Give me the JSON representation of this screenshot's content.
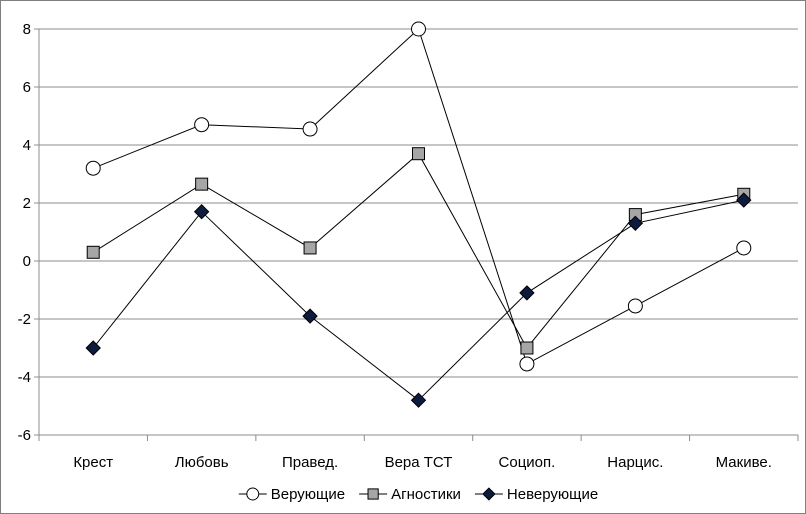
{
  "chart_data": {
    "type": "line",
    "categories": [
      "Крест",
      "Любовь",
      "Правед.",
      "Вера ТСТ",
      "Социоп.",
      "Нарцис.",
      "Макиве."
    ],
    "ylim": [
      -6,
      8
    ],
    "yticks": [
      "-6",
      "-4",
      "-2",
      "0",
      "2",
      "4",
      "6",
      "8"
    ],
    "grid": true,
    "legend_position": "bottom",
    "series": [
      {
        "name": "Верующие",
        "marker": "circle",
        "color": "#000000",
        "fill": "#ffffff",
        "values": [
          3.2,
          4.7,
          4.55,
          8.0,
          -3.55,
          -1.55,
          0.45
        ]
      },
      {
        "name": "Агностики",
        "marker": "square",
        "color": "#000000",
        "fill": "#a6a6a6",
        "values": [
          0.3,
          2.65,
          0.45,
          3.7,
          -3.0,
          1.6,
          2.3
        ]
      },
      {
        "name": "Неверующие",
        "marker": "diamond",
        "color": "#000000",
        "fill": "#0d1b3e",
        "values": [
          -3.0,
          1.7,
          -1.9,
          -4.8,
          -1.1,
          1.3,
          2.1
        ]
      }
    ]
  }
}
